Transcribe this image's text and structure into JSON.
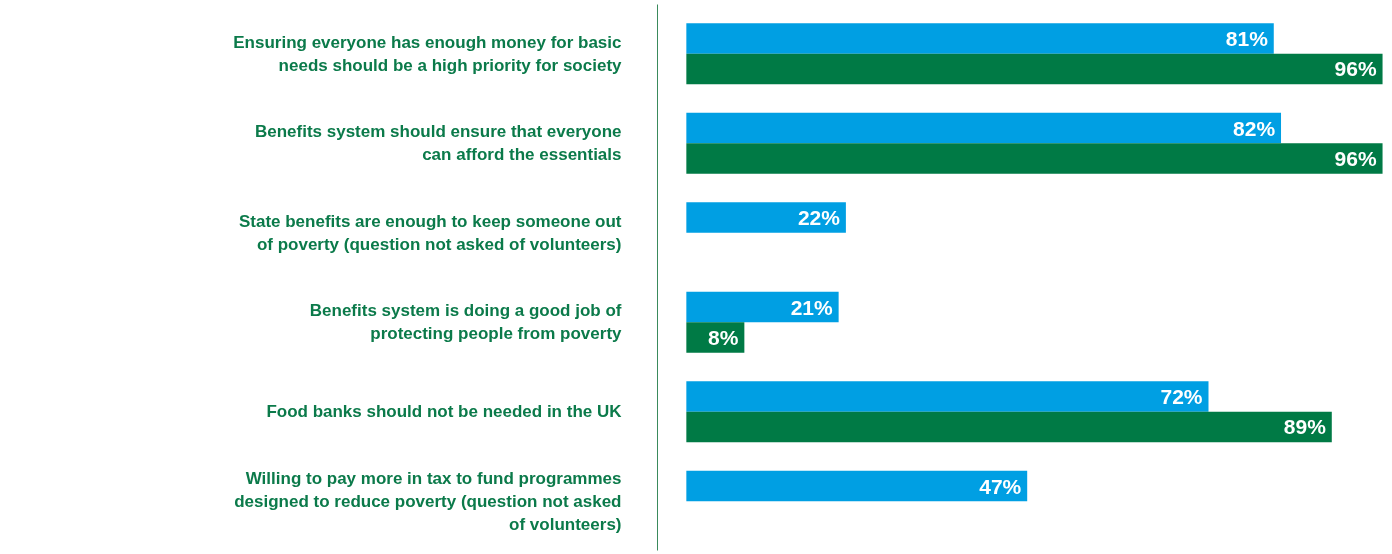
{
  "chart_data": {
    "type": "bar",
    "orientation": "horizontal",
    "categories": [
      "Ensuring everyone has enough money for basic needs should be a high priority for society",
      "Benefits system should ensure that everyone can afford the essentials",
      "State benefits are enough to keep someone out of poverty (question not asked of volunteers)",
      "Benefits system is doing a good job of protecting people from poverty",
      "Food banks should not be needed in the UK",
      "Willing to pay more in tax to fund programmes designed to reduce poverty (question not asked of volunteers)"
    ],
    "series": [
      {
        "color": "#009fe3",
        "values": [
          81,
          82,
          22,
          21,
          72,
          47
        ],
        "value_labels": [
          "81%",
          "82%",
          "22%",
          "21%",
          "72%",
          "47%"
        ]
      },
      {
        "color": "#007a45",
        "values": [
          96,
          96,
          null,
          8,
          89,
          null
        ],
        "value_labels": [
          "96%",
          "96%",
          null,
          "8%",
          "89%",
          null
        ]
      }
    ],
    "grid": false,
    "tick_labels": "y"
  }
}
